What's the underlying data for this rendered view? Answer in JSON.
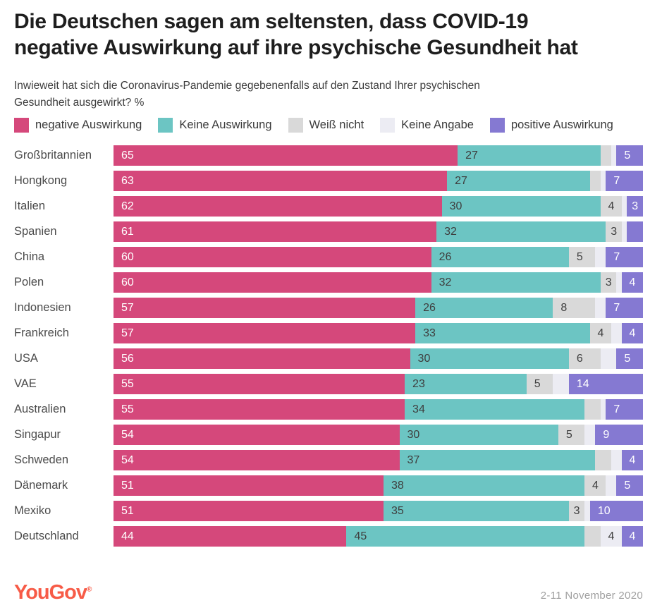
{
  "page": {
    "title": {
      "line1": "Die Deutschen sagen am seltensten, dass COVID-19",
      "line2": "negative Auswirkung auf ihre psychische Gesundheit hat"
    },
    "subtitle": {
      "line1": "Inwieweit hat sich die Coronavirus-Pandemie gegebenenfalls auf den Zustand Ihrer psychischen",
      "line2": "Gesundheit ausgewirkt?  %"
    },
    "footer": {
      "brand": "YouGov",
      "brand_mark": "®",
      "date_range": "2-11 November 2020"
    }
  },
  "colors": {
    "negative": "#d5487b",
    "no_effect": "#6cc5c3",
    "dont_know": "#d9d9d9",
    "no_answer": "#ececf3",
    "positive": "#8579d2",
    "brand": "#f75b47",
    "dark_label": "#3e3e3e",
    "light_label": "#ffffff"
  },
  "legend": [
    {
      "label": "negative Auswirkung",
      "color": "#d5487b"
    },
    {
      "label": "Keine Auswirkung",
      "color": "#6cc5c3"
    },
    {
      "label": "Weiß nicht",
      "color": "#d9d9d9"
    },
    {
      "label": "Keine Angabe",
      "color": "#ececf3"
    },
    {
      "label": "positive Auswirkung",
      "color": "#8579d2"
    }
  ],
  "chart_data": {
    "type": "bar",
    "orientation": "horizontal",
    "stacked": true,
    "value_unit": "%",
    "xlim": [
      0,
      100
    ],
    "grid": false,
    "legend_position": "top",
    "series_names": [
      "negative Auswirkung",
      "Keine Auswirkung",
      "Weiß nicht",
      "Keine Angabe",
      "positive Auswirkung"
    ],
    "series_colors": [
      "#d5487b",
      "#6cc5c3",
      "#d9d9d9",
      "#ececf3",
      "#8579d2"
    ],
    "series_label_colors": [
      "#ffffff",
      "#3e3e3e",
      "#3e3e3e",
      "#3e3e3e",
      "#ffffff"
    ],
    "categories": [
      "Großbritannien",
      "Hongkong",
      "Italien",
      "Spanien",
      "China",
      "Polen",
      "Indonesien",
      "Frankreich",
      "USA",
      "VAE",
      "Australien",
      "Singapur",
      "Schweden",
      "Dänemark",
      "Mexiko",
      "Deutschland"
    ],
    "rows": [
      {
        "category": "Großbritannien",
        "values": [
          65,
          27,
          2,
          1,
          5
        ],
        "shown_labels": [
          "65",
          "27",
          "",
          "",
          "5"
        ]
      },
      {
        "category": "Hongkong",
        "values": [
          63,
          27,
          2,
          1,
          7
        ],
        "shown_labels": [
          "63",
          "27",
          "",
          "",
          "7"
        ]
      },
      {
        "category": "Italien",
        "values": [
          62,
          30,
          4,
          1,
          3
        ],
        "shown_labels": [
          "62",
          "30",
          "4",
          "",
          "3"
        ]
      },
      {
        "category": "Spanien",
        "values": [
          61,
          32,
          3,
          1,
          3
        ],
        "shown_labels": [
          "61",
          "32",
          "3",
          "",
          ""
        ]
      },
      {
        "category": "China",
        "values": [
          60,
          26,
          5,
          2,
          7
        ],
        "shown_labels": [
          "60",
          "26",
          "5",
          "",
          "7"
        ]
      },
      {
        "category": "Polen",
        "values": [
          60,
          32,
          3,
          1,
          4
        ],
        "shown_labels": [
          "60",
          "32",
          "3",
          "",
          "4"
        ]
      },
      {
        "category": "Indonesien",
        "values": [
          57,
          26,
          8,
          2,
          7
        ],
        "shown_labels": [
          "57",
          "26",
          "8",
          "",
          "7"
        ]
      },
      {
        "category": "Frankreich",
        "values": [
          57,
          33,
          4,
          2,
          4
        ],
        "shown_labels": [
          "57",
          "33",
          "4",
          "",
          "4"
        ]
      },
      {
        "category": "USA",
        "values": [
          56,
          30,
          6,
          3,
          5
        ],
        "shown_labels": [
          "56",
          "30",
          "6",
          "",
          "5"
        ]
      },
      {
        "category": "VAE",
        "values": [
          55,
          23,
          5,
          3,
          14
        ],
        "shown_labels": [
          "55",
          "23",
          "5",
          "",
          "14"
        ]
      },
      {
        "category": "Australien",
        "values": [
          55,
          34,
          3,
          1,
          7
        ],
        "shown_labels": [
          "55",
          "34",
          "",
          "",
          "7"
        ]
      },
      {
        "category": "Singapur",
        "values": [
          54,
          30,
          5,
          2,
          9
        ],
        "shown_labels": [
          "54",
          "30",
          "5",
          "",
          "9"
        ]
      },
      {
        "category": "Schweden",
        "values": [
          54,
          37,
          3,
          2,
          4
        ],
        "shown_labels": [
          "54",
          "37",
          "",
          "",
          "4"
        ]
      },
      {
        "category": "Dänemark",
        "values": [
          51,
          38,
          4,
          2,
          5
        ],
        "shown_labels": [
          "51",
          "38",
          "4",
          "",
          "5"
        ]
      },
      {
        "category": "Mexiko",
        "values": [
          51,
          35,
          3,
          1,
          10
        ],
        "shown_labels": [
          "51",
          "35",
          "3",
          "",
          "10"
        ]
      },
      {
        "category": "Deutschland",
        "values": [
          44,
          45,
          3,
          4,
          4
        ],
        "shown_labels": [
          "44",
          "45",
          "",
          "4",
          "4"
        ]
      }
    ]
  }
}
